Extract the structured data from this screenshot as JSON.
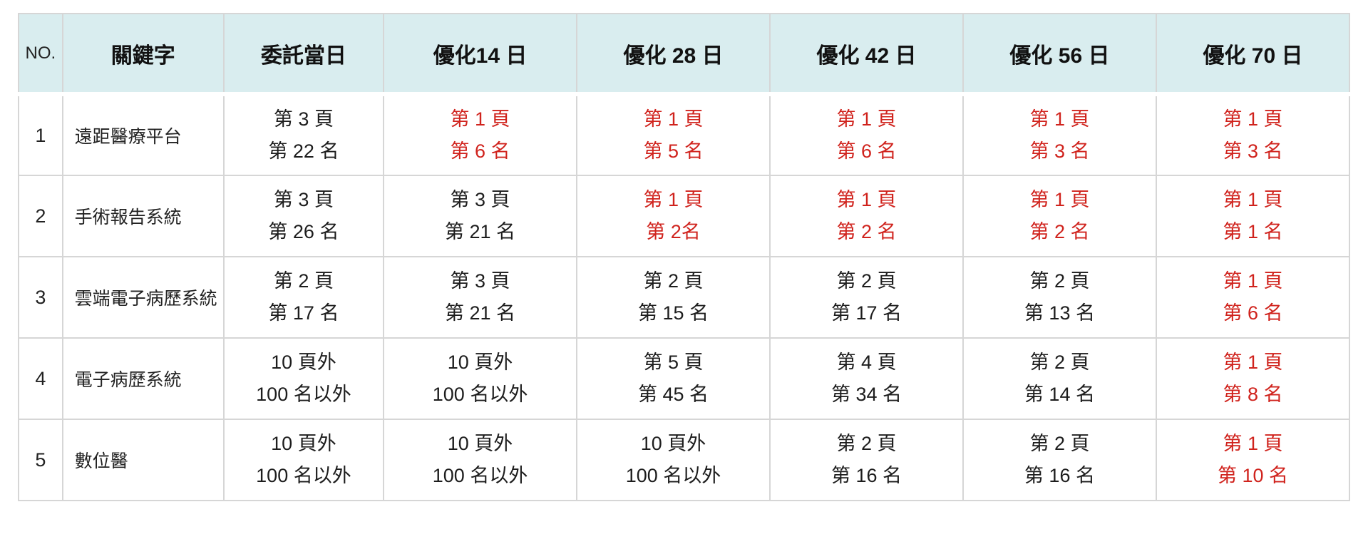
{
  "colors": {
    "header_bg": "#d9edef",
    "highlight_red": "#d0231d",
    "text": "#1d1d1d",
    "border": "#d6d6d6"
  },
  "table": {
    "header": [
      "NO.",
      "關鍵字",
      "委託當日",
      "優化14 日",
      "優化 28 日",
      "優化 42 日",
      "優化 56 日",
      "優化 70 日"
    ],
    "rows": [
      {
        "no": "1",
        "keyword": "遠距醫療平台",
        "cells": [
          {
            "page": "第 3 頁",
            "rank": "第 22 名",
            "red": false
          },
          {
            "page": "第 1 頁",
            "rank": "第 6 名",
            "red": true
          },
          {
            "page": "第 1 頁",
            "rank": "第 5 名",
            "red": true
          },
          {
            "page": "第 1 頁",
            "rank": "第 6 名",
            "red": true
          },
          {
            "page": "第 1 頁",
            "rank": "第 3 名",
            "red": true
          },
          {
            "page": "第 1 頁",
            "rank": "第 3 名",
            "red": true
          }
        ]
      },
      {
        "no": "2",
        "keyword": "手術報告系統",
        "cells": [
          {
            "page": "第 3 頁",
            "rank": "第 26 名",
            "red": false
          },
          {
            "page": "第 3 頁",
            "rank": "第 21 名",
            "red": false
          },
          {
            "page": "第 1 頁",
            "rank": "第 2名",
            "red": true
          },
          {
            "page": "第 1 頁",
            "rank": "第 2 名",
            "red": true
          },
          {
            "page": "第 1 頁",
            "rank": "第 2 名",
            "red": true
          },
          {
            "page": "第 1 頁",
            "rank": "第 1 名",
            "red": true
          }
        ]
      },
      {
        "no": "3",
        "keyword": "雲端電子病歷系統",
        "cells": [
          {
            "page": "第 2 頁",
            "rank": "第 17 名",
            "red": false
          },
          {
            "page": "第 3 頁",
            "rank": "第 21 名",
            "red": false
          },
          {
            "page": "第 2 頁",
            "rank": "第 15 名",
            "red": false
          },
          {
            "page": "第 2 頁",
            "rank": "第 17 名",
            "red": false
          },
          {
            "page": "第 2 頁",
            "rank": "第 13 名",
            "red": false
          },
          {
            "page": "第 1 頁",
            "rank": "第 6 名",
            "red": true
          }
        ]
      },
      {
        "no": "4",
        "keyword": "電子病歷系統",
        "cells": [
          {
            "page": "10 頁外",
            "rank": "100 名以外",
            "red": false
          },
          {
            "page": "10 頁外",
            "rank": "100 名以外",
            "red": false
          },
          {
            "page": "第 5 頁",
            "rank": "第 45 名",
            "red": false
          },
          {
            "page": "第 4 頁",
            "rank": "第 34 名",
            "red": false
          },
          {
            "page": "第 2 頁",
            "rank": "第 14 名",
            "red": false
          },
          {
            "page": "第 1 頁",
            "rank": "第 8 名",
            "red": true
          }
        ]
      },
      {
        "no": "5",
        "keyword": "數位醫",
        "cells": [
          {
            "page": "10 頁外",
            "rank": "100 名以外",
            "red": false
          },
          {
            "page": "10 頁外",
            "rank": "100 名以外",
            "red": false
          },
          {
            "page": "10 頁外",
            "rank": "100 名以外",
            "red": false
          },
          {
            "page": "第 2 頁",
            "rank": "第 16 名",
            "red": false
          },
          {
            "page": "第 2 頁",
            "rank": "第 16 名",
            "red": false
          },
          {
            "page": "第 1 頁",
            "rank": "第 10 名",
            "red": true
          }
        ]
      }
    ]
  },
  "chart_data": {
    "type": "table",
    "columns": [
      "NO.",
      "關鍵字",
      "委託當日",
      "優化14 日",
      "優化 28 日",
      "優化 42 日",
      "優化 56 日",
      "優化 70 日"
    ],
    "rows": [
      [
        "1",
        "遠距醫療平台",
        "第 3 頁 第 22 名",
        "第 1 頁 第 6 名",
        "第 1 頁 第 5 名",
        "第 1 頁 第 6 名",
        "第 1 頁 第 3 名",
        "第 1 頁 第 3 名"
      ],
      [
        "2",
        "手術報告系統",
        "第 3 頁 第 26 名",
        "第 3 頁 第 21 名",
        "第 1 頁 第 2名",
        "第 1 頁 第 2 名",
        "第 1 頁 第 2 名",
        "第 1 頁 第 1 名"
      ],
      [
        "3",
        "雲端電子病歷系統",
        "第 2 頁 第 17 名",
        "第 3 頁 第 21 名",
        "第 2 頁 第 15 名",
        "第 2 頁 第 17 名",
        "第 2 頁 第 13 名",
        "第 1 頁 第 6 名"
      ],
      [
        "4",
        "電子病歷系統",
        "10 頁外 100 名以外",
        "10 頁外 100 名以外",
        "第 5 頁 第 45 名",
        "第 4 頁 第 34 名",
        "第 2 頁 第 14 名",
        "第 1 頁 第 8 名"
      ],
      [
        "5",
        "數位醫",
        "10 頁外 100 名以外",
        "10 頁外 100 名以外",
        "10 頁外 100 名以外",
        "第 2 頁 第 16 名",
        "第 2 頁 第 16 名",
        "第 1 頁 第 10 名"
      ]
    ],
    "layout": {
      "header_background": "#d9edef",
      "improved_rank_color": "#d0231d",
      "grid": true,
      "legend": "none"
    }
  }
}
